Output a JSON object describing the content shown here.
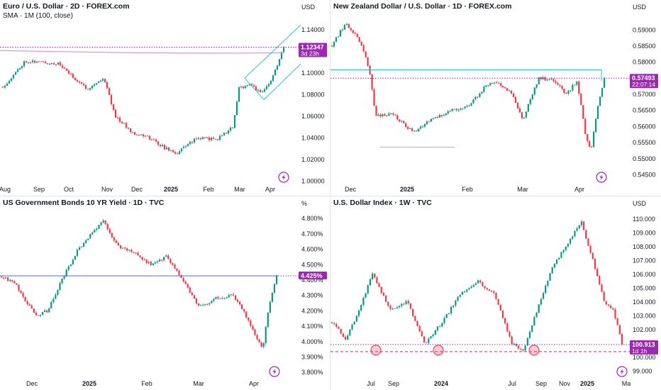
{
  "panels": [
    {
      "id": "eurusd",
      "title": "Euro / U.S. Dollar · 2D · FOREX.com",
      "subtitle": "SMA · 1M (100, close)",
      "currency": "USD",
      "price_label": "1.12347",
      "countdown": "3d 23h",
      "colors": {
        "up": "#089981",
        "down": "#f23645",
        "label": "#9c27b0",
        "sma": "#ce93d8",
        "channel": "#26c6da"
      }
    },
    {
      "id": "nzdusd",
      "title": "New Zealand Dollar / U.S. Dollar · 1D · FOREX.com",
      "subtitle": "",
      "currency": "USD",
      "price_label": "0.57493",
      "countdown": "22:07:14",
      "colors": {
        "up": "#089981",
        "down": "#f23645",
        "label": "#9c27b0",
        "level": "#26c6da"
      }
    },
    {
      "id": "us10y",
      "title": "US Government Bonds 10 YR Yield · 1D · TVC",
      "subtitle": "",
      "currency": "%",
      "price_label": "4.425%",
      "countdown": "",
      "colors": {
        "up": "#089981",
        "down": "#f23645",
        "label": "#9c27b0",
        "level": "#2962ff"
      }
    },
    {
      "id": "dxy",
      "title": "U.S. Dollar Index · 1W · TVC",
      "subtitle": "",
      "currency": "USD",
      "price_label": "100.913",
      "countdown": "1d 1h",
      "colors": {
        "up": "#089981",
        "down": "#f23645",
        "label": "#9c27b0",
        "support": "#e91e63"
      }
    }
  ],
  "chart_data": [
    {
      "type": "line",
      "title": "Euro / U.S. Dollar · 2D · FOREX.com",
      "x": [
        "Aug",
        "Sep",
        "Oct",
        "Nov",
        "Dec",
        "2025",
        "Feb",
        "Mar",
        "Apr"
      ],
      "series": [
        {
          "name": "",
          "values": [
            1.09,
            1.105,
            1.11,
            1.085,
            1.05,
            1.035,
            1.04,
            1.08,
            1.1235
          ]
        }
      ],
      "y_ticks": [
        "1.14000",
        "1.12000",
        "1.10000",
        "1.08000",
        "1.06000",
        "1.04000",
        "1.02000",
        "1.00000"
      ],
      "ylim": [
        1.0,
        1.15
      ],
      "last_price": 1.12347,
      "grid": false
    },
    {
      "type": "line",
      "title": "New Zealand Dollar / U.S. Dollar · 1D · FOREX.com",
      "x": [
        "Dec",
        "2025",
        "Feb",
        "Mar",
        "Apr"
      ],
      "series": [
        {
          "name": "",
          "values": [
            0.585,
            0.565,
            0.56,
            0.57,
            0.5749
          ]
        }
      ],
      "y_ticks": [
        "0.59000",
        "0.58500",
        "0.58000",
        "0.57500",
        "0.57000",
        "0.56500",
        "0.56000",
        "0.55500",
        "0.55000",
        "0.54500"
      ],
      "ylim": [
        0.543,
        0.5935
      ],
      "last_price": 0.57493,
      "grid": false
    },
    {
      "type": "line",
      "title": "US Government Bonds 10 YR Yield · 1D · TVC",
      "x": [
        "Dec",
        "2025",
        "Feb",
        "Mar",
        "Apr"
      ],
      "series": [
        {
          "name": "",
          "values": [
            4.35,
            4.55,
            4.5,
            4.25,
            4.425
          ]
        }
      ],
      "y_ticks": [
        "4.800%",
        "4.700%",
        "4.600%",
        "4.500%",
        "4.400%",
        "4.300%",
        "4.200%",
        "4.100%",
        "4.000%",
        "3.900%",
        "3.800%"
      ],
      "ylim": [
        3.78,
        4.84
      ],
      "last_price": 4.425,
      "grid": false
    },
    {
      "type": "line",
      "title": "U.S. Dollar Index · 1W · TVC",
      "x": [
        "Jul",
        "Sep",
        "2024",
        "Jul",
        "Sep",
        "Nov",
        "2025",
        "Ma"
      ],
      "series": [
        {
          "name": "",
          "values": [
            101.0,
            105.0,
            101.5,
            104.0,
            101.0,
            105.0,
            109.5,
            100.9
          ]
        }
      ],
      "y_ticks": [
        "110.000",
        "109.000",
        "108.000",
        "107.000",
        "106.000",
        "105.000",
        "104.000",
        "103.000",
        "102.000",
        "101.000",
        "100.000",
        "99.000"
      ],
      "ylim": [
        98.7,
        110.5
      ],
      "last_price": 100.913,
      "support": 100.4,
      "grid": false
    }
  ]
}
